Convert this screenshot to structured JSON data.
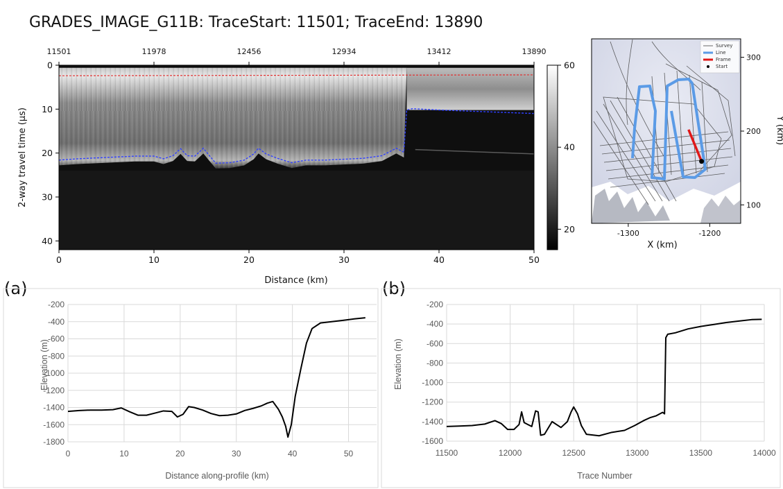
{
  "title": "GRADES_IMAGE_G11B: TraceStart: 11501; TraceEnd: 13890",
  "panel_labels": {
    "a": "(a)",
    "b": "(b)"
  },
  "colors": {
    "surface_pick": "#e03030",
    "bed_pick": "#3040ff",
    "line_blue": "#5b9be6",
    "frame_red": "#e01818",
    "profile_line": "#000000"
  },
  "chart_data": [
    {
      "id": "radargram",
      "type": "heatmap",
      "xlabel": "Distance (km)",
      "ylabel": "2-way travel time (µs)",
      "xlim": [
        0,
        50
      ],
      "ylim": [
        42,
        0
      ],
      "x_ticks": [
        "0",
        "10",
        "20",
        "30",
        "40",
        "50"
      ],
      "y_ticks": [
        "0",
        "10",
        "20",
        "30",
        "40"
      ],
      "top_axis_ticks": [
        "11501",
        "11978",
        "12456",
        "12934",
        "13412",
        "13890"
      ],
      "colorbar": {
        "ticks": [
          "60",
          "40",
          "20"
        ],
        "range": [
          15,
          60
        ]
      },
      "surface_pick": {
        "x": [
          0,
          50
        ],
        "y": [
          2.4,
          2.2
        ]
      },
      "bed_pick": {
        "x": [
          0,
          2,
          4,
          6,
          8,
          10,
          11,
          12,
          12.8,
          13.5,
          14.3,
          15.2,
          15.8,
          16.5,
          18,
          19.5,
          20.5,
          21,
          21.8,
          23,
          24.5,
          26,
          28,
          30,
          32,
          34,
          35.5,
          36.3,
          36.6,
          37.2,
          40,
          45,
          50
        ],
        "y": [
          21.6,
          21.3,
          21.1,
          20.9,
          20.7,
          20.7,
          21.3,
          20.6,
          19.0,
          20.6,
          20.7,
          18.9,
          20.5,
          22.3,
          22.2,
          21.6,
          20.2,
          18.9,
          20.2,
          21.2,
          22.2,
          21.6,
          21.6,
          21.4,
          21.2,
          20.6,
          18.9,
          19.8,
          10.2,
          9.9,
          10.2,
          10.6,
          11.0
        ]
      }
    },
    {
      "id": "location-map",
      "type": "scatter",
      "xlabel": "X (km)",
      "ylabel": "Y (km)",
      "xlim": [
        -1345,
        -1162
      ],
      "ylim": [
        75,
        325
      ],
      "x_ticks": [
        "-1300",
        "-1200"
      ],
      "y_ticks": [
        "300",
        "200",
        "100"
      ],
      "legend": [
        "Survey",
        "Line",
        "Frame",
        "Start"
      ],
      "legend_position": "top-right",
      "frame_segment": {
        "x": [
          -1226,
          -1210
        ],
        "y": [
          202,
          159
        ]
      },
      "start_point": {
        "x": -1210,
        "y": 159
      }
    },
    {
      "id": "profile-a",
      "type": "line",
      "xlabel": "Distance along-profile (km)",
      "ylabel": "Elevation (m)",
      "xlim": [
        0,
        55
      ],
      "ylim": [
        -1800,
        -200
      ],
      "x_ticks": [
        "0",
        "10",
        "20",
        "30",
        "40",
        "50"
      ],
      "y_ticks": [
        "-200",
        "-400",
        "-600",
        "-800",
        "-1000",
        "-1200",
        "-1400",
        "-1600",
        "-1800"
      ],
      "series": [
        {
          "x": [
            0,
            2,
            4,
            6,
            8,
            9.5,
            11,
            12.5,
            14,
            15.5,
            17,
            18.5,
            19.5,
            20.5,
            21.5,
            22.5,
            24,
            25.5,
            27,
            28.5,
            30,
            31.5,
            33,
            34.5,
            35.5,
            36.5,
            37.5,
            38.2,
            38.8,
            39.2,
            39.8,
            40.5,
            41.5,
            42.5,
            43.5,
            45,
            47,
            49,
            51,
            53
          ],
          "y": [
            -1445,
            -1435,
            -1430,
            -1430,
            -1425,
            -1405,
            -1450,
            -1490,
            -1490,
            -1465,
            -1440,
            -1445,
            -1510,
            -1480,
            -1390,
            -1400,
            -1430,
            -1470,
            -1495,
            -1490,
            -1475,
            -1435,
            -1410,
            -1380,
            -1350,
            -1330,
            -1420,
            -1510,
            -1620,
            -1745,
            -1600,
            -1270,
            -950,
            -650,
            -480,
            -415,
            -400,
            -385,
            -368,
            -355
          ]
        }
      ]
    },
    {
      "id": "profile-b",
      "type": "line",
      "xlabel": "Trace Number",
      "ylabel": "Elevation (m)",
      "xlim": [
        11500,
        14000
      ],
      "ylim": [
        -1600,
        -200
      ],
      "x_ticks": [
        "11500",
        "12000",
        "12500",
        "13000",
        "13500",
        "14000"
      ],
      "y_ticks": [
        "-200",
        "-400",
        "-600",
        "-800",
        "-1000",
        "-1200",
        "-1400",
        "-1600"
      ],
      "series": [
        {
          "x": [
            11500,
            11600,
            11700,
            11800,
            11880,
            11930,
            11980,
            12030,
            12070,
            12090,
            12110,
            12140,
            12170,
            12200,
            12220,
            12240,
            12270,
            12330,
            12400,
            12450,
            12480,
            12500,
            12530,
            12560,
            12600,
            12700,
            12800,
            12900,
            12980,
            13050,
            13100,
            13150,
            13200,
            13215,
            13225,
            13240,
            13300,
            13400,
            13500,
            13600,
            13700,
            13800,
            13900,
            13980
          ],
          "y": [
            -1450,
            -1445,
            -1440,
            -1425,
            -1390,
            -1420,
            -1480,
            -1480,
            -1430,
            -1300,
            -1410,
            -1430,
            -1450,
            -1290,
            -1300,
            -1540,
            -1530,
            -1400,
            -1460,
            -1400,
            -1300,
            -1250,
            -1320,
            -1440,
            -1530,
            -1545,
            -1510,
            -1490,
            -1440,
            -1390,
            -1360,
            -1340,
            -1305,
            -1320,
            -540,
            -505,
            -490,
            -450,
            -425,
            -405,
            -385,
            -370,
            -355,
            -352
          ]
        }
      ]
    }
  ]
}
